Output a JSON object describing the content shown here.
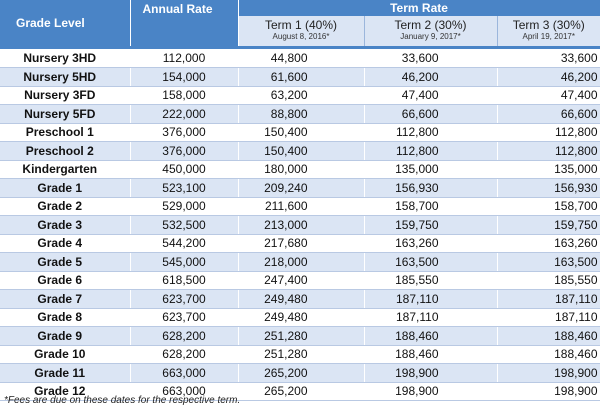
{
  "header": {
    "grade_level": "Grade Level",
    "annual_rate": "Annual Rate",
    "term_rate": "Term Rate",
    "terms": [
      {
        "name": "Term 1 (40%)",
        "date": "August 8, 2016*"
      },
      {
        "name": "Term 2 (30%)",
        "date": "January 9, 2017*"
      },
      {
        "name": "Term 3 (30%)",
        "date": "April 19, 2017*"
      }
    ]
  },
  "rows": [
    {
      "grade": "Nursery 3HD",
      "annual": "112,000",
      "t1": "44,800",
      "t2": "33,600",
      "t3": "33,600"
    },
    {
      "grade": "Nursery 5HD",
      "annual": "154,000",
      "t1": "61,600",
      "t2": "46,200",
      "t3": "46,200"
    },
    {
      "grade": "Nursery 3FD",
      "annual": "158,000",
      "t1": "63,200",
      "t2": "47,400",
      "t3": "47,400"
    },
    {
      "grade": "Nursery 5FD",
      "annual": "222,000",
      "t1": "88,800",
      "t2": "66,600",
      "t3": "66,600"
    },
    {
      "grade": "Preschool 1",
      "annual": "376,000",
      "t1": "150,400",
      "t2": "112,800",
      "t3": "112,800"
    },
    {
      "grade": "Preschool 2",
      "annual": "376,000",
      "t1": "150,400",
      "t2": "112,800",
      "t3": "112,800"
    },
    {
      "grade": "Kindergarten",
      "annual": "450,000",
      "t1": "180,000",
      "t2": "135,000",
      "t3": "135,000"
    },
    {
      "grade": "Grade 1",
      "annual": "523,100",
      "t1": "209,240",
      "t2": "156,930",
      "t3": "156,930"
    },
    {
      "grade": "Grade 2",
      "annual": "529,000",
      "t1": "211,600",
      "t2": "158,700",
      "t3": "158,700"
    },
    {
      "grade": "Grade 3",
      "annual": "532,500",
      "t1": "213,000",
      "t2": "159,750",
      "t3": "159,750"
    },
    {
      "grade": "Grade 4",
      "annual": "544,200",
      "t1": "217,680",
      "t2": "163,260",
      "t3": "163,260"
    },
    {
      "grade": "Grade 5",
      "annual": "545,000",
      "t1": "218,000",
      "t2": "163,500",
      "t3": "163,500"
    },
    {
      "grade": "Grade 6",
      "annual": "618,500",
      "t1": "247,400",
      "t2": "185,550",
      "t3": "185,550"
    },
    {
      "grade": "Grade 7",
      "annual": "623,700",
      "t1": "249,480",
      "t2": "187,110",
      "t3": "187,110"
    },
    {
      "grade": "Grade 8",
      "annual": "623,700",
      "t1": "249,480",
      "t2": "187,110",
      "t3": "187,110"
    },
    {
      "grade": "Grade 9",
      "annual": "628,200",
      "t1": "251,280",
      "t2": "188,460",
      "t3": "188,460"
    },
    {
      "grade": "Grade 10",
      "annual": "628,200",
      "t1": "251,280",
      "t2": "188,460",
      "t3": "188,460"
    },
    {
      "grade": "Grade 11",
      "annual": "663,000",
      "t1": "265,200",
      "t2": "198,900",
      "t3": "198,900"
    },
    {
      "grade": "Grade 12",
      "annual": "663,000",
      "t1": "265,200",
      "t2": "198,900",
      "t3": "198,900"
    }
  ],
  "footnote": "*Fees are due on these dates for the respective term.",
  "colors": {
    "header_blue": "#4a84c6",
    "row_alt": "#dbe5f4"
  }
}
